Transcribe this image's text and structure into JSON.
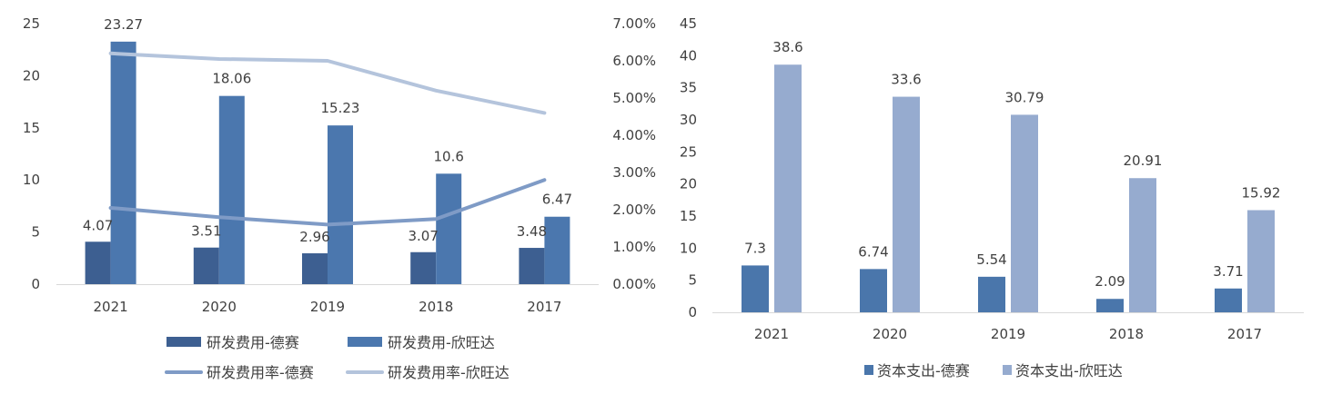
{
  "colors": {
    "deSai_rd": "#3D5F91",
    "xwd_rd": "#4B77AE",
    "deSai_rate": "#7F9BC6",
    "xwd_rate": "#B4C4DC",
    "deSai_capex": "#4A76AB",
    "xwd_capex": "#96ABCF",
    "axis": "#D9D9D9",
    "text": "#404040"
  },
  "chart_data": [
    {
      "type": "bar+line",
      "title": "",
      "categories": [
        "2021",
        "2020",
        "2019",
        "2018",
        "2017"
      ],
      "series": [
        {
          "name": "研发费用-德赛",
          "kind": "bar",
          "axis": "left",
          "values": [
            4.07,
            3.51,
            2.96,
            3.07,
            3.48
          ],
          "labels": [
            "4.07",
            "3.51",
            "2.96",
            "3.07",
            "3.48"
          ]
        },
        {
          "name": "研发费用-欣旺达",
          "kind": "bar",
          "axis": "left",
          "values": [
            23.27,
            18.06,
            15.23,
            10.6,
            6.47
          ],
          "labels": [
            "23.27",
            "18.06",
            "15.23",
            "10.6",
            "6.47"
          ]
        },
        {
          "name": "研发费用率-德赛",
          "kind": "line",
          "axis": "right",
          "values": [
            0.0205,
            0.018,
            0.016,
            0.0175,
            0.028
          ]
        },
        {
          "name": "研发费用率-欣旺达",
          "kind": "line",
          "axis": "right",
          "values": [
            0.062,
            0.0605,
            0.06,
            0.052,
            0.046
          ]
        }
      ],
      "y_left": {
        "min": 0,
        "max": 25,
        "ticks": [
          "0",
          "5",
          "10",
          "15",
          "20",
          "25"
        ]
      },
      "y_right": {
        "min": 0,
        "max": 0.07,
        "ticks": [
          "0.00%",
          "1.00%",
          "2.00%",
          "3.00%",
          "4.00%",
          "5.00%",
          "6.00%",
          "7.00%"
        ]
      },
      "legend": {
        "placement": "bottom",
        "items": [
          "研发费用-德赛",
          "研发费用-欣旺达",
          "研发费用率-德赛",
          "研发费用率-欣旺达"
        ]
      }
    },
    {
      "type": "bar",
      "title": "",
      "categories": [
        "2021",
        "2020",
        "2019",
        "2018",
        "2017"
      ],
      "series": [
        {
          "name": "资本支出-德赛",
          "values": [
            7.3,
            6.74,
            5.54,
            2.09,
            3.71
          ],
          "labels": [
            "7.3",
            "6.74",
            "5.54",
            "2.09",
            "3.71"
          ]
        },
        {
          "name": "资本支出-欣旺达",
          "values": [
            38.6,
            33.6,
            30.79,
            20.91,
            15.92
          ],
          "labels": [
            "38.6",
            "33.6",
            "30.79",
            "20.91",
            "15.92"
          ]
        }
      ],
      "y_left": {
        "min": 0,
        "max": 45,
        "ticks": [
          "0",
          "5",
          "10",
          "15",
          "20",
          "25",
          "30",
          "35",
          "40",
          "45"
        ]
      },
      "legend": {
        "placement": "bottom",
        "items": [
          "资本支出-德赛",
          "资本支出-欣旺达"
        ]
      }
    }
  ]
}
